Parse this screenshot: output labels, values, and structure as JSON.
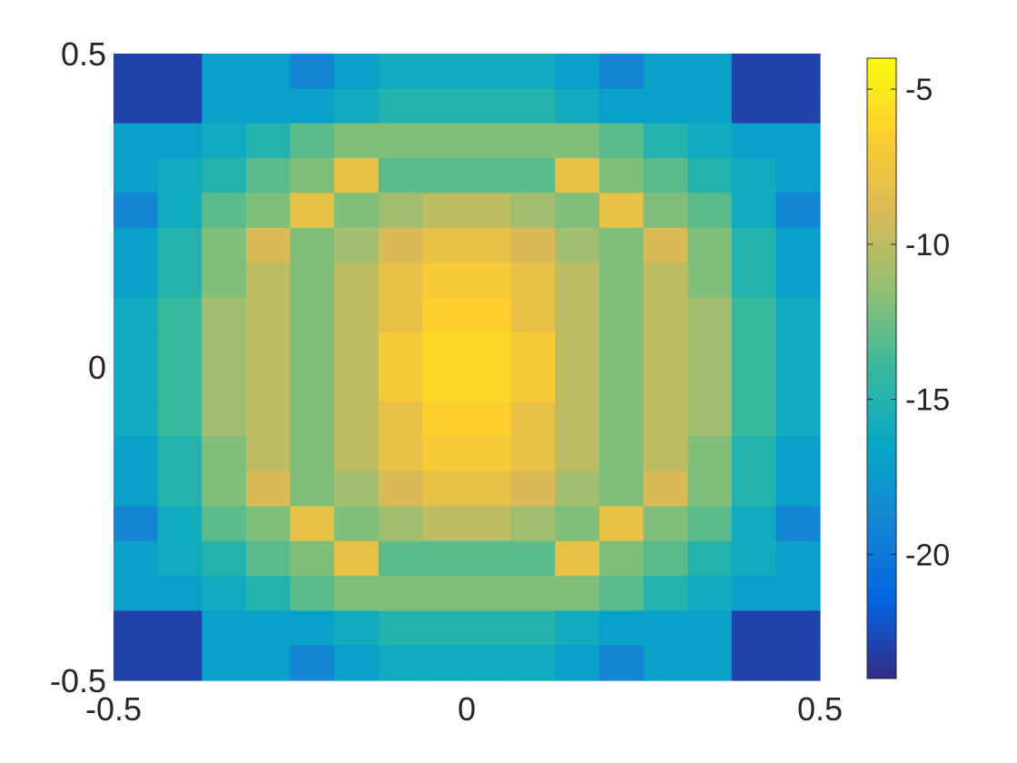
{
  "chart_data": {
    "type": "heatmap",
    "title": "",
    "xlabel": "",
    "ylabel": "",
    "xlim": [
      -0.5,
      0.5
    ],
    "ylim": [
      -0.5,
      0.5
    ],
    "x_ticks": [
      -0.5,
      0,
      0.5
    ],
    "x_tick_labels": [
      "-0.5",
      "0",
      "0.5"
    ],
    "y_ticks": [
      -0.5,
      0,
      0.5
    ],
    "y_tick_labels": [
      "-0.5",
      "0",
      "0.5"
    ],
    "colormap": "parula",
    "clim": [
      -24,
      -4
    ],
    "colorbar": {
      "location": "right",
      "ticks": [
        -5,
        -10,
        -15,
        -20
      ],
      "tick_labels": [
        "-5",
        "-10",
        "-15",
        "-20"
      ]
    },
    "grid": false,
    "x_edges": [
      -0.5,
      -0.4375,
      -0.375,
      -0.3125,
      -0.25,
      -0.1875,
      -0.125,
      -0.0625,
      0.0,
      0.0625,
      0.125,
      0.1875,
      0.25,
      0.3125,
      0.375,
      0.4375,
      0.5
    ],
    "y_edges": [
      0.5,
      0.4444,
      0.3889,
      0.3333,
      0.2778,
      0.2222,
      0.1667,
      0.1111,
      0.0556,
      0.0,
      -0.0556,
      -0.1111,
      -0.1667,
      -0.2222,
      -0.2778,
      -0.3333,
      -0.3889,
      -0.4444,
      -0.5
    ],
    "values": [
      [
        -23,
        -23,
        -17,
        -17,
        -19,
        -17,
        -16,
        -16,
        -16,
        -16,
        -17,
        -19,
        -17,
        -17,
        -23,
        -23
      ],
      [
        -23,
        -23,
        -17,
        -17,
        -17,
        -16,
        -15,
        -15,
        -15,
        -15,
        -16,
        -17,
        -17,
        -17,
        -23,
        -23
      ],
      [
        -17,
        -17,
        -16,
        -15,
        -13,
        -12,
        -12,
        -12,
        -12,
        -12,
        -12,
        -13,
        -15,
        -16,
        -17,
        -17
      ],
      [
        -17,
        -16,
        -15,
        -13,
        -12,
        -8,
        -13,
        -13,
        -13,
        -13,
        -8,
        -12,
        -13,
        -15,
        -16,
        -17
      ],
      [
        -19,
        -16,
        -13,
        -12,
        -8,
        -12,
        -11,
        -10,
        -10,
        -11,
        -12,
        -8,
        -12,
        -13,
        -16,
        -19
      ],
      [
        -17,
        -15,
        -12,
        -9,
        -12,
        -11,
        -9,
        -8,
        -8,
        -9,
        -11,
        -12,
        -9,
        -12,
        -15,
        -17
      ],
      [
        -17,
        -15,
        -12,
        -10,
        -12,
        -10,
        -8,
        -7,
        -7,
        -8,
        -10,
        -12,
        -10,
        -12,
        -15,
        -17
      ],
      [
        -16,
        -14,
        -11,
        -10,
        -12,
        -10,
        -8,
        -6.5,
        -6.5,
        -8,
        -10,
        -12,
        -10,
        -11,
        -14,
        -16
      ],
      [
        -16,
        -14,
        -11,
        -10,
        -12,
        -10,
        -7,
        -6,
        -6,
        -7,
        -10,
        -12,
        -10,
        -11,
        -14,
        -16
      ],
      [
        -16,
        -14,
        -11,
        -10,
        -12,
        -10,
        -7,
        -6,
        -6,
        -7,
        -10,
        -12,
        -10,
        -11,
        -14,
        -16
      ],
      [
        -16,
        -14,
        -11,
        -10,
        -12,
        -10,
        -8,
        -6.5,
        -6.5,
        -8,
        -10,
        -12,
        -10,
        -11,
        -14,
        -16
      ],
      [
        -17,
        -15,
        -12,
        -10,
        -12,
        -10,
        -8,
        -7,
        -7,
        -8,
        -10,
        -12,
        -10,
        -12,
        -15,
        -17
      ],
      [
        -17,
        -15,
        -12,
        -9,
        -12,
        -11,
        -9,
        -8,
        -8,
        -9,
        -11,
        -12,
        -9,
        -12,
        -15,
        -17
      ],
      [
        -19,
        -16,
        -13,
        -12,
        -8,
        -12,
        -11,
        -10,
        -10,
        -11,
        -12,
        -8,
        -12,
        -13,
        -16,
        -19
      ],
      [
        -17,
        -16,
        -15,
        -13,
        -12,
        -8,
        -13,
        -13,
        -13,
        -13,
        -8,
        -12,
        -13,
        -15,
        -16,
        -17
      ],
      [
        -17,
        -17,
        -16,
        -15,
        -13,
        -12,
        -12,
        -12,
        -12,
        -12,
        -12,
        -13,
        -15,
        -16,
        -17,
        -17
      ],
      [
        -23,
        -23,
        -17,
        -17,
        -17,
        -16,
        -15,
        -15,
        -15,
        -15,
        -16,
        -17,
        -17,
        -17,
        -23,
        -23
      ],
      [
        -23,
        -23,
        -17,
        -17,
        -19,
        -17,
        -16,
        -16,
        -16,
        -16,
        -17,
        -19,
        -17,
        -17,
        -23,
        -23
      ]
    ]
  }
}
